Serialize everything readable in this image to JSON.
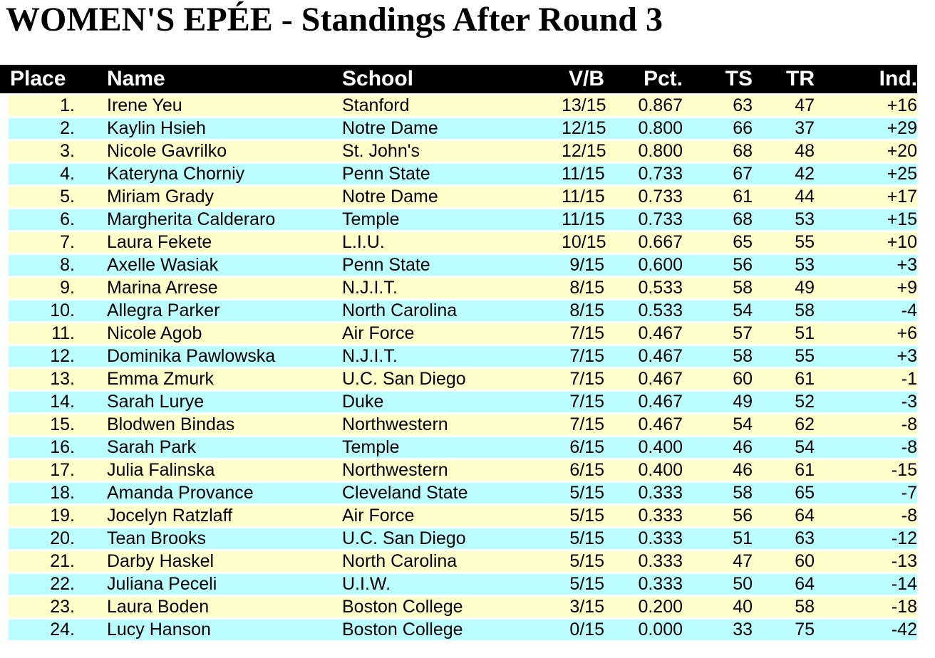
{
  "title": "WOMEN'S EPÉE - Standings After Round 3",
  "colors": {
    "header_bg": "#000000",
    "header_text": "#ffffff",
    "row_yellow": "#ffffc9",
    "row_cyan": "#bbfeff",
    "page_bg": "#ffffff",
    "text": "#000000"
  },
  "table": {
    "headers": {
      "place": "Place",
      "name": "Name",
      "school": "School",
      "vb": "V/B",
      "pct": "Pct.",
      "ts": "TS",
      "tr": "TR",
      "ind": "Ind."
    },
    "rows": [
      {
        "place": "1.",
        "name": "Irene Yeu",
        "school": "Stanford",
        "vb": "13/15",
        "pct": "0.867",
        "ts": "63",
        "tr": "47",
        "ind": "+16"
      },
      {
        "place": "2.",
        "name": "Kaylin Hsieh",
        "school": "Notre Dame",
        "vb": "12/15",
        "pct": "0.800",
        "ts": "66",
        "tr": "37",
        "ind": "+29"
      },
      {
        "place": "3.",
        "name": "Nicole Gavrilko",
        "school": "St. John's",
        "vb": "12/15",
        "pct": "0.800",
        "ts": "68",
        "tr": "48",
        "ind": "+20"
      },
      {
        "place": "4.",
        "name": "Kateryna Chorniy",
        "school": "Penn State",
        "vb": "11/15",
        "pct": "0.733",
        "ts": "67",
        "tr": "42",
        "ind": "+25"
      },
      {
        "place": "5.",
        "name": "Miriam Grady",
        "school": "Notre Dame",
        "vb": "11/15",
        "pct": "0.733",
        "ts": "61",
        "tr": "44",
        "ind": "+17"
      },
      {
        "place": "6.",
        "name": "Margherita Calderaro",
        "school": "Temple",
        "vb": "11/15",
        "pct": "0.733",
        "ts": "68",
        "tr": "53",
        "ind": "+15"
      },
      {
        "place": "7.",
        "name": "Laura Fekete",
        "school": "L.I.U.",
        "vb": "10/15",
        "pct": "0.667",
        "ts": "65",
        "tr": "55",
        "ind": "+10"
      },
      {
        "place": "8.",
        "name": "Axelle Wasiak",
        "school": "Penn State",
        "vb": "9/15",
        "pct": "0.600",
        "ts": "56",
        "tr": "53",
        "ind": "+3"
      },
      {
        "place": "9.",
        "name": "Marina Arrese",
        "school": "N.J.I.T.",
        "vb": "8/15",
        "pct": "0.533",
        "ts": "58",
        "tr": "49",
        "ind": "+9"
      },
      {
        "place": "10.",
        "name": "Allegra Parker",
        "school": "North Carolina",
        "vb": "8/15",
        "pct": "0.533",
        "ts": "54",
        "tr": "58",
        "ind": "-4"
      },
      {
        "place": "11.",
        "name": "Nicole Agob",
        "school": "Air Force",
        "vb": "7/15",
        "pct": "0.467",
        "ts": "57",
        "tr": "51",
        "ind": "+6"
      },
      {
        "place": "12.",
        "name": "Dominika Pawlowska",
        "school": "N.J.I.T.",
        "vb": "7/15",
        "pct": "0.467",
        "ts": "58",
        "tr": "55",
        "ind": "+3"
      },
      {
        "place": "13.",
        "name": "Emma Zmurk",
        "school": "U.C. San Diego",
        "vb": "7/15",
        "pct": "0.467",
        "ts": "60",
        "tr": "61",
        "ind": "-1"
      },
      {
        "place": "14.",
        "name": "Sarah Lurye",
        "school": "Duke",
        "vb": "7/15",
        "pct": "0.467",
        "ts": "49",
        "tr": "52",
        "ind": "-3"
      },
      {
        "place": "15.",
        "name": "Blodwen Bindas",
        "school": "Northwestern",
        "vb": "7/15",
        "pct": "0.467",
        "ts": "54",
        "tr": "62",
        "ind": "-8"
      },
      {
        "place": "16.",
        "name": "Sarah Park",
        "school": "Temple",
        "vb": "6/15",
        "pct": "0.400",
        "ts": "46",
        "tr": "54",
        "ind": "-8"
      },
      {
        "place": "17.",
        "name": "Julia Falinska",
        "school": "Northwestern",
        "vb": "6/15",
        "pct": "0.400",
        "ts": "46",
        "tr": "61",
        "ind": "-15"
      },
      {
        "place": "18.",
        "name": "Amanda Provance",
        "school": "Cleveland State",
        "vb": "5/15",
        "pct": "0.333",
        "ts": "58",
        "tr": "65",
        "ind": "-7"
      },
      {
        "place": "19.",
        "name": "Jocelyn Ratzlaff",
        "school": "Air Force",
        "vb": "5/15",
        "pct": "0.333",
        "ts": "56",
        "tr": "64",
        "ind": "-8"
      },
      {
        "place": "20.",
        "name": "Tean Brooks",
        "school": "U.C. San Diego",
        "vb": "5/15",
        "pct": "0.333",
        "ts": "51",
        "tr": "63",
        "ind": "-12"
      },
      {
        "place": "21.",
        "name": "Darby Haskel",
        "school": "North Carolina",
        "vb": "5/15",
        "pct": "0.333",
        "ts": "47",
        "tr": "60",
        "ind": "-13"
      },
      {
        "place": "22.",
        "name": "Juliana Peceli",
        "school": "U.I.W.",
        "vb": "5/15",
        "pct": "0.333",
        "ts": "50",
        "tr": "64",
        "ind": "-14"
      },
      {
        "place": "23.",
        "name": "Laura Boden",
        "school": "Boston College",
        "vb": "3/15",
        "pct": "0.200",
        "ts": "40",
        "tr": "58",
        "ind": "-18"
      },
      {
        "place": "24.",
        "name": "Lucy Hanson",
        "school": "Boston College",
        "vb": "0/15",
        "pct": "0.000",
        "ts": "33",
        "tr": "75",
        "ind": "-42"
      }
    ]
  }
}
